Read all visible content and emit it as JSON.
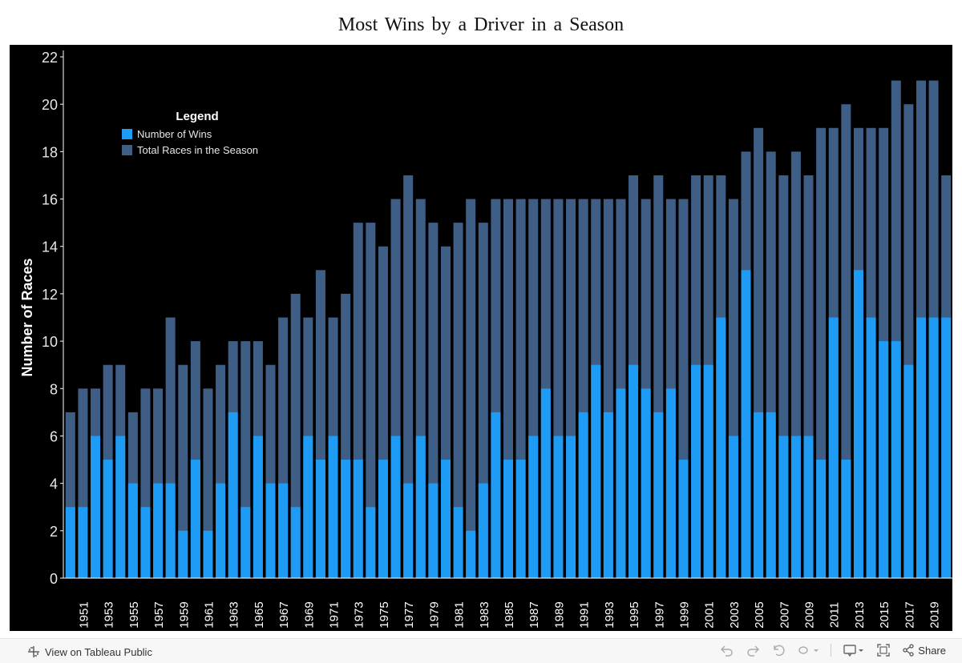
{
  "chart_data": {
    "type": "bar",
    "title": "Most Wins by a Driver in a Season",
    "ylabel": "Number of Races",
    "xlabel": "",
    "ylim": [
      0,
      22
    ],
    "yticks": [
      0,
      2,
      4,
      6,
      8,
      10,
      12,
      14,
      16,
      18,
      20,
      22
    ],
    "categories": [
      1950,
      1951,
      1952,
      1953,
      1954,
      1955,
      1956,
      1957,
      1958,
      1959,
      1960,
      1961,
      1962,
      1963,
      1964,
      1965,
      1966,
      1967,
      1968,
      1969,
      1970,
      1971,
      1972,
      1973,
      1974,
      1975,
      1976,
      1977,
      1978,
      1979,
      1980,
      1981,
      1982,
      1983,
      1984,
      1985,
      1986,
      1987,
      1988,
      1989,
      1990,
      1991,
      1992,
      1993,
      1994,
      1995,
      1996,
      1997,
      1998,
      1999,
      2000,
      2001,
      2002,
      2003,
      2004,
      2005,
      2006,
      2007,
      2008,
      2009,
      2010,
      2011,
      2012,
      2013,
      2014,
      2015,
      2016,
      2017,
      2018,
      2019,
      2020
    ],
    "x_tick_labels": [
      "1951",
      "1953",
      "1955",
      "1957",
      "1959",
      "1961",
      "1963",
      "1965",
      "1967",
      "1969",
      "1971",
      "1973",
      "1975",
      "1977",
      "1979",
      "1981",
      "1983",
      "1985",
      "1987",
      "1989",
      "1991",
      "1993",
      "1995",
      "1997",
      "1999",
      "2001",
      "2003",
      "2005",
      "2007",
      "2009",
      "2011",
      "2013",
      "2015",
      "2017",
      "2019"
    ],
    "legend_title": "Legend",
    "legend_position": "top-left",
    "series": [
      {
        "name": "Number of Wins",
        "color": "#1e9bf5",
        "values": [
          3,
          3,
          6,
          5,
          6,
          4,
          3,
          4,
          4,
          2,
          5,
          2,
          4,
          7,
          3,
          6,
          4,
          4,
          3,
          6,
          5,
          6,
          5,
          5,
          3,
          5,
          6,
          4,
          6,
          4,
          5,
          3,
          2,
          4,
          7,
          5,
          5,
          6,
          8,
          6,
          6,
          7,
          9,
          7,
          8,
          9,
          8,
          7,
          8,
          5,
          9,
          9,
          11,
          6,
          13,
          7,
          7,
          6,
          6,
          6,
          5,
          11,
          5,
          13,
          11,
          10,
          10,
          9,
          11,
          11,
          11
        ]
      },
      {
        "name": "Total Races in the Season",
        "color": "#3e5e85",
        "values": [
          7,
          8,
          8,
          9,
          9,
          7,
          8,
          8,
          11,
          9,
          10,
          8,
          9,
          10,
          10,
          10,
          9,
          11,
          12,
          11,
          13,
          11,
          12,
          15,
          15,
          14,
          16,
          17,
          16,
          15,
          14,
          15,
          16,
          15,
          16,
          16,
          16,
          16,
          16,
          16,
          16,
          16,
          16,
          16,
          16,
          17,
          16,
          17,
          16,
          16,
          17,
          17,
          17,
          16,
          18,
          19,
          18,
          17,
          18,
          17,
          19,
          19,
          20,
          19,
          19,
          19,
          21,
          20,
          21,
          21,
          17
        ]
      }
    ]
  },
  "toolbar": {
    "view_label": "View on Tableau Public",
    "share_label": "Share"
  }
}
